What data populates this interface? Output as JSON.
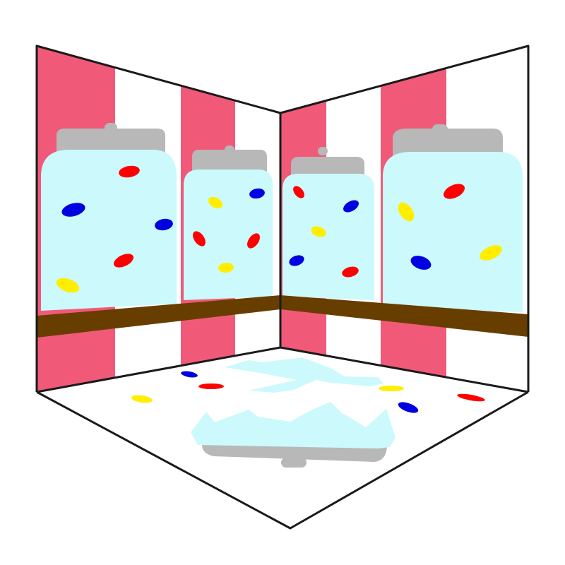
{
  "colors": {
    "background": "#ffffff",
    "stripe": "#f05a78",
    "wall": "#ffffff",
    "floor": "#ffffff",
    "outline": "#1a1a1a",
    "glass": "#ccf9fc",
    "lid": "#b8b8b8",
    "shelf": "#683e00",
    "bean_red": "#ff0000",
    "bean_blue": "#0000e0",
    "bean_yellow": "#ffee00"
  },
  "scene": {
    "jar_count": 4,
    "broken_jar_count": 1,
    "jelly_bean_colors": [
      "red",
      "blue",
      "yellow"
    ]
  }
}
